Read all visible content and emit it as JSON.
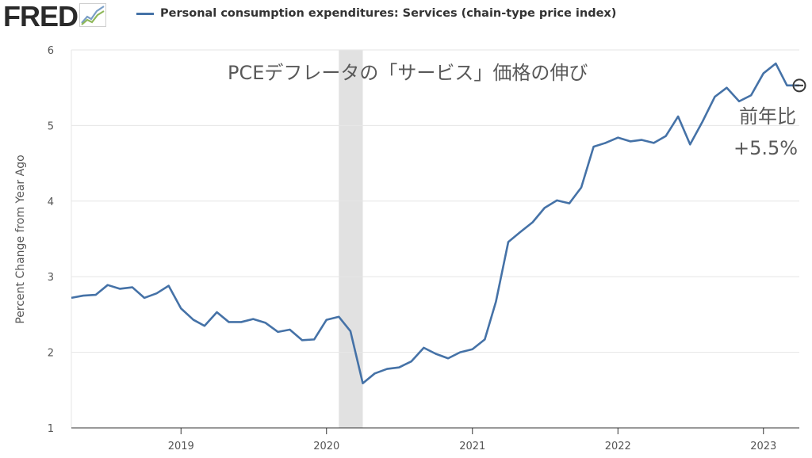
{
  "header": {
    "logo_text": "FRED",
    "logo_icon": "chart-line-icon",
    "legend_label": "Personal consumption expenditures: Services (chain-type price index)"
  },
  "colors": {
    "series": "#4572a7",
    "recession": "#e1e1e1",
    "grid": "#e6e6e6",
    "axis": "#333333",
    "text": "#555555"
  },
  "annotations": {
    "title": "PCEデフレータの「サービス」価格の伸び",
    "yoy_label": "前年比",
    "yoy_value": "+5.5%"
  },
  "chart_data": {
    "type": "line",
    "ylabel": "Percent Change from Year Ago",
    "xlabel": "",
    "ylim": [
      1,
      6
    ],
    "yticks": [
      1,
      2,
      3,
      4,
      5,
      6
    ],
    "xlim": [
      "2018-04-01",
      "2023-04-01"
    ],
    "xticks": [
      {
        "label": "2019",
        "date": "2019-01-01"
      },
      {
        "label": "2020",
        "date": "2020-01-01"
      },
      {
        "label": "2021",
        "date": "2021-01-01"
      },
      {
        "label": "2022",
        "date": "2022-01-01"
      },
      {
        "label": "2023",
        "date": "2023-01-01"
      }
    ],
    "grid": true,
    "recession": {
      "start": "2020-02-01",
      "end": "2020-04-01"
    },
    "series": [
      {
        "name": "Personal consumption expenditures: Services (chain-type price index)",
        "x": [
          "2018-04",
          "2018-05",
          "2018-06",
          "2018-07",
          "2018-08",
          "2018-09",
          "2018-10",
          "2018-11",
          "2018-12",
          "2019-01",
          "2019-02",
          "2019-03",
          "2019-04",
          "2019-05",
          "2019-06",
          "2019-07",
          "2019-08",
          "2019-09",
          "2019-10",
          "2019-11",
          "2019-12",
          "2020-01",
          "2020-02",
          "2020-03",
          "2020-04",
          "2020-05",
          "2020-06",
          "2020-07",
          "2020-08",
          "2020-09",
          "2020-10",
          "2020-11",
          "2020-12",
          "2021-01",
          "2021-02",
          "2021-03",
          "2021-04",
          "2021-05",
          "2021-06",
          "2021-07",
          "2021-08",
          "2021-09",
          "2021-10",
          "2021-11",
          "2021-12",
          "2022-01",
          "2022-02",
          "2022-03",
          "2022-04",
          "2022-05",
          "2022-06",
          "2022-07",
          "2022-08",
          "2022-09",
          "2022-10",
          "2022-11",
          "2022-12",
          "2023-01",
          "2023-02",
          "2023-03",
          "2023-04"
        ],
        "values": [
          2.72,
          2.75,
          2.76,
          2.89,
          2.84,
          2.86,
          2.72,
          2.78,
          2.88,
          2.58,
          2.43,
          2.35,
          2.53,
          2.4,
          2.4,
          2.44,
          2.39,
          2.27,
          2.3,
          2.16,
          2.17,
          2.43,
          2.47,
          2.28,
          1.59,
          1.72,
          1.78,
          1.8,
          1.88,
          2.06,
          1.98,
          1.92,
          2.0,
          2.04,
          2.17,
          2.67,
          3.46,
          3.59,
          3.72,
          3.91,
          4.01,
          3.97,
          4.18,
          4.72,
          4.77,
          4.84,
          4.79,
          4.81,
          4.77,
          4.86,
          5.12,
          4.75,
          5.05,
          5.38,
          5.5,
          5.32,
          5.4,
          5.69,
          5.82,
          5.53,
          5.53
        ]
      }
    ]
  }
}
